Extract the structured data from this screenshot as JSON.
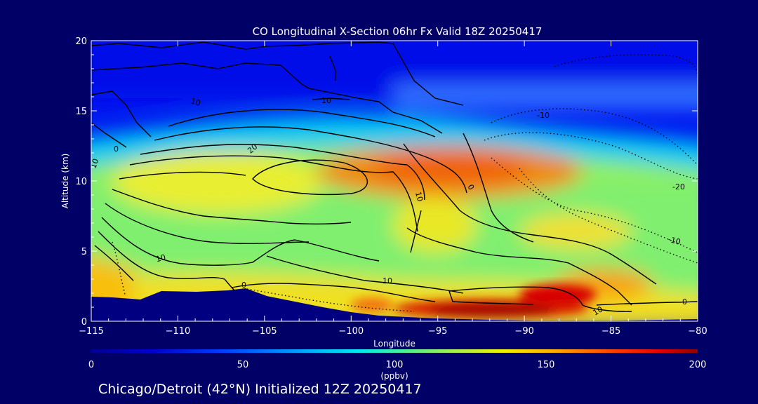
{
  "colors": {
    "background": "#000066",
    "terrain": "#000080",
    "text": "#ffffff",
    "contour": "#000000"
  },
  "footer": {
    "caption": "Chicago/Detroit (42°N) Initialized 12Z 20250417"
  },
  "chart_data": {
    "type": "heatmap",
    "title": "CO Longitudinal X-Section 06hr  Fx Valid 18Z 20250417",
    "xlabel": "Longitude",
    "ylabel": "Altitude (km)",
    "xlim": [
      -115,
      -80
    ],
    "ylim": [
      0,
      20
    ],
    "x_ticks": [
      -115,
      -110,
      -105,
      -100,
      -95,
      -90,
      -85,
      -80
    ],
    "y_ticks": [
      0,
      5,
      10,
      15,
      20
    ],
    "colorbar": {
      "label": "(ppbv)",
      "range": [
        0,
        200
      ],
      "ticks": [
        0,
        50,
        100,
        150,
        200
      ],
      "colormap": "rainbow (dark blue → cyan → green → yellow → red → dark red)"
    },
    "grid": false,
    "legend": "none",
    "contour_labels": [
      "10",
      "10",
      "10",
      "10",
      "20",
      "0",
      "0",
      "10",
      "10",
      "0",
      "-10",
      "-20",
      "-10",
      "0",
      "10",
      "10",
      "-10",
      "-10",
      "-20"
    ],
    "co_field_regions": [
      {
        "lon": [
          -115,
          -80
        ],
        "alt": [
          15,
          20
        ],
        "co": 20
      },
      {
        "lon": [
          -104,
          -93
        ],
        "alt": [
          12,
          16
        ],
        "co": 45
      },
      {
        "lon": [
          -113,
          -80
        ],
        "alt": [
          11,
          14
        ],
        "co": 80
      },
      {
        "lon": [
          -111,
          -101
        ],
        "alt": [
          7,
          11
        ],
        "co": 115
      },
      {
        "lon": [
          -102,
          -88
        ],
        "alt": [
          9,
          12
        ],
        "co": 150
      },
      {
        "lon": [
          -110,
          -83
        ],
        "alt": [
          3,
          7
        ],
        "co": 110
      },
      {
        "lon": [
          -115,
          -107
        ],
        "alt": [
          1,
          4
        ],
        "co": 135
      },
      {
        "lon": [
          -96,
          -87
        ],
        "alt": [
          0,
          1
        ],
        "co": 190
      },
      {
        "lon": [
          -89,
          -84
        ],
        "alt": [
          1,
          2.5
        ],
        "co": 175
      },
      {
        "lon": [
          -84,
          -81
        ],
        "alt": [
          0,
          1.5
        ],
        "co": 120
      }
    ]
  }
}
